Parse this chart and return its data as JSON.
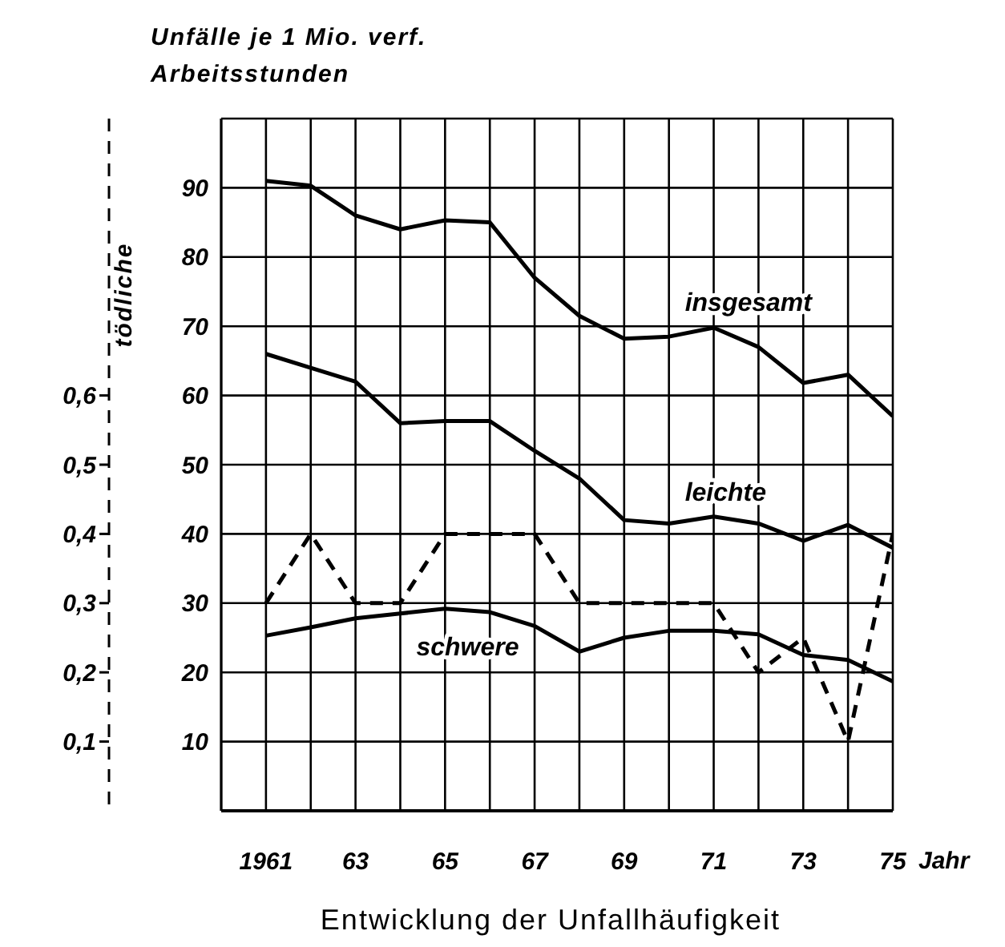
{
  "chart_data": {
    "type": "line",
    "title": "Entwicklung der Unfallhäufigkeit",
    "xlabel": "Jahr",
    "ylabel": "Unfälle je 1 Mio. verf. Arbeitsstunden",
    "y2label": "tödliche",
    "x": [
      1961,
      1962,
      1963,
      1964,
      1965,
      1966,
      1967,
      1968,
      1969,
      1970,
      1971,
      1972,
      1973,
      1974,
      1975
    ],
    "xlim": [
      1960,
      1975
    ],
    "xticks": [
      {
        "value": 1960,
        "label": null
      },
      {
        "value": 1961,
        "label": "1961"
      },
      {
        "value": 1962,
        "label": null
      },
      {
        "value": 1963,
        "label": "63"
      },
      {
        "value": 1964,
        "label": null
      },
      {
        "value": 1965,
        "label": "65"
      },
      {
        "value": 1966,
        "label": null
      },
      {
        "value": 1967,
        "label": "67"
      },
      {
        "value": 1968,
        "label": null
      },
      {
        "value": 1969,
        "label": "69"
      },
      {
        "value": 1970,
        "label": null
      },
      {
        "value": 1971,
        "label": "71"
      },
      {
        "value": 1972,
        "label": null
      },
      {
        "value": 1973,
        "label": "73"
      },
      {
        "value": 1974,
        "label": null
      },
      {
        "value": 1975,
        "label": "75"
      }
    ],
    "ylim": [
      0,
      100
    ],
    "yticks": [
      {
        "value": 0,
        "label": null
      },
      10,
      20,
      30,
      40,
      50,
      60,
      70,
      80,
      90,
      {
        "value": 100,
        "label": null
      }
    ],
    "y2lim": [
      0,
      1
    ],
    "y2ticks": [
      {
        "value": 0.1,
        "label": "0,1"
      },
      {
        "value": 0.2,
        "label": "0,2"
      },
      {
        "value": 0.3,
        "label": "0,3"
      },
      {
        "value": 0.4,
        "label": "0,4"
      },
      {
        "value": 0.5,
        "label": "0,5"
      },
      {
        "value": 0.6,
        "label": "0,6"
      }
    ],
    "grid": true,
    "marker": "none",
    "series": [
      {
        "name": "insgesamt",
        "color": "#000000",
        "values": [
          91,
          90.3,
          86,
          84,
          85.3,
          85,
          77,
          71.5,
          68.2,
          68.5,
          69.8,
          67,
          61.8,
          63,
          57
        ]
      },
      {
        "name": "leichte",
        "color": "#000000",
        "values": [
          66,
          64,
          62,
          56,
          56.3,
          56.3,
          52,
          48,
          42,
          41.5,
          42.5,
          41.5,
          39,
          41.3,
          38
        ]
      },
      {
        "name": "schwere",
        "color": "#000000",
        "values": [
          25.3,
          26.5,
          27.8,
          28.5,
          29.2,
          28.7,
          26.7,
          23,
          25,
          26,
          26,
          25.5,
          22.5,
          21.8,
          18.7
        ]
      },
      {
        "color": "#000000",
        "axis": "y2",
        "line_style": "dashed",
        "values": [
          0.3,
          0.4,
          0.3,
          0.3,
          0.4,
          0.4,
          0.4,
          0.3,
          0.3,
          0.3,
          0.3,
          0.2,
          0.25,
          0.1,
          0.4
        ]
      }
    ]
  }
}
